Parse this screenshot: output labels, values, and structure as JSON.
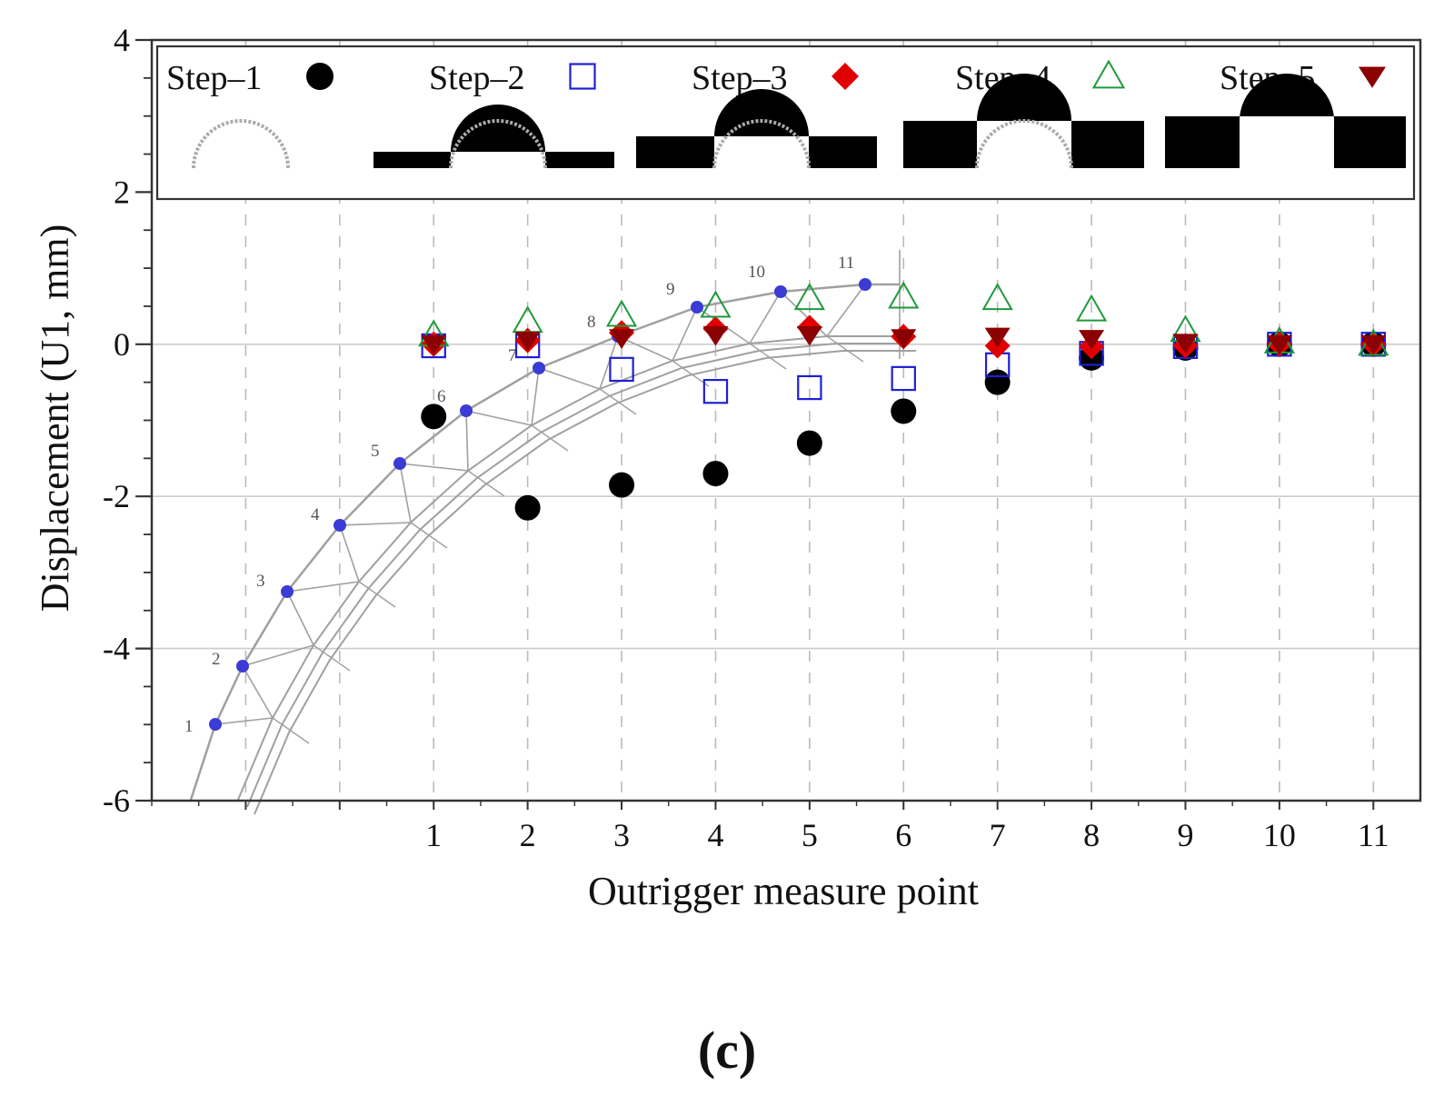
{
  "chart_data": {
    "type": "scatter",
    "xlabel": "Outrigger measure point",
    "ylabel": "Displacement (U1, mm)",
    "x": [
      1,
      2,
      3,
      4,
      5,
      6,
      7,
      8,
      9,
      10,
      11
    ],
    "x_tick_labels": [
      "1",
      "2",
      "3",
      "4",
      "5",
      "6",
      "7",
      "8",
      "9",
      "10",
      "11"
    ],
    "xlim": [
      -2,
      11.5
    ],
    "ylim": [
      -6,
      4
    ],
    "y_ticks": [
      4,
      2,
      0,
      -2,
      -4,
      -6
    ],
    "y_tick_labels": [
      "4",
      "2",
      "0",
      "-2",
      "-4",
      "-6"
    ],
    "grid": {
      "vertical_dashed": true,
      "horizontal": true
    },
    "legend_position": "top",
    "series": [
      {
        "name": "Step–1",
        "marker": "filled-circle",
        "color": "#000000",
        "values": [
          -0.95,
          -2.15,
          -1.85,
          -1.7,
          -1.3,
          -0.88,
          -0.5,
          -0.18,
          -0.05,
          0.0,
          0.0
        ]
      },
      {
        "name": "Step–2",
        "marker": "open-square",
        "color": "#1f1fd6",
        "values": [
          -0.02,
          -0.02,
          -0.33,
          -0.62,
          -0.57,
          -0.45,
          -0.27,
          -0.12,
          -0.03,
          0.0,
          0.0
        ]
      },
      {
        "name": "Step–3",
        "marker": "filled-diamond",
        "color": "#e00000",
        "values": [
          0.0,
          0.05,
          0.15,
          0.2,
          0.22,
          0.1,
          -0.02,
          -0.03,
          -0.02,
          0.0,
          0.0
        ]
      },
      {
        "name": "Step–4",
        "marker": "open-triangle-up",
        "color": "#1e9a3a",
        "values": [
          0.12,
          0.3,
          0.38,
          0.5,
          0.6,
          0.62,
          0.6,
          0.45,
          0.18,
          0.03,
          0.0
        ]
      },
      {
        "name": "Step–5",
        "marker": "filled-triangle-down",
        "color": "#8b0000",
        "values": [
          0.0,
          0.05,
          0.08,
          0.12,
          0.12,
          0.08,
          0.1,
          0.07,
          0.02,
          0.0,
          0.0
        ]
      }
    ],
    "inset_node_labels": [
      "1",
      "2",
      "3",
      "4",
      "5",
      "6",
      "7",
      "8",
      "9",
      "10",
      "11"
    ],
    "panel_label": "(c)"
  },
  "colors": {
    "axis": "#333333",
    "grid": "#bbbbbb",
    "inset": "#a0a0a0",
    "inset_nodes": "#3b3bd6"
  }
}
